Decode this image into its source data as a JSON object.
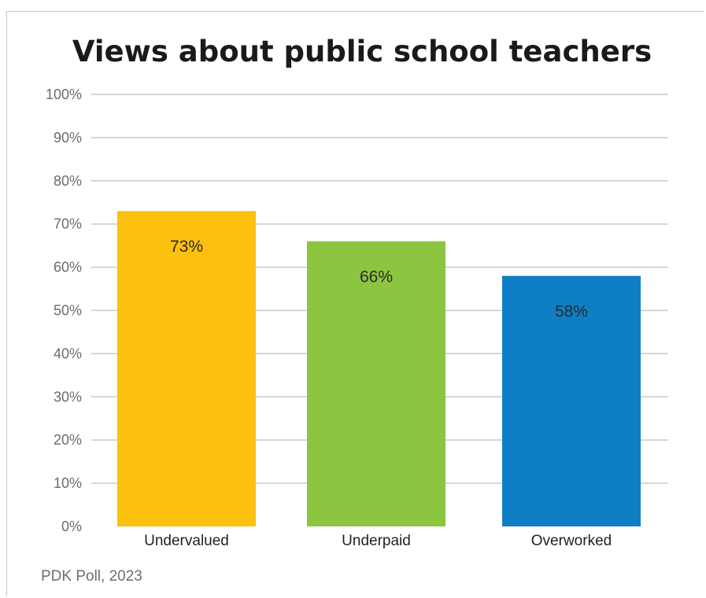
{
  "chart_data": {
    "type": "bar",
    "title": "Views about public school teachers",
    "categories": [
      "Undervalued",
      "Underpaid",
      "Overworked"
    ],
    "values": [
      73,
      66,
      58
    ],
    "data_labels": [
      "73%",
      "66%",
      "58%"
    ],
    "colors": [
      "#fcc00e",
      "#8cc540",
      "#0e7fc4"
    ],
    "ylim": [
      0,
      100
    ],
    "yticks": [
      0,
      10,
      20,
      30,
      40,
      50,
      60,
      70,
      80,
      90,
      100
    ],
    "ytick_labels": [
      "0%",
      "10%",
      "20%",
      "30%",
      "40%",
      "50%",
      "60%",
      "70%",
      "80%",
      "90%",
      "100%"
    ],
    "grid": true,
    "source": "PDK Poll, 2023"
  }
}
